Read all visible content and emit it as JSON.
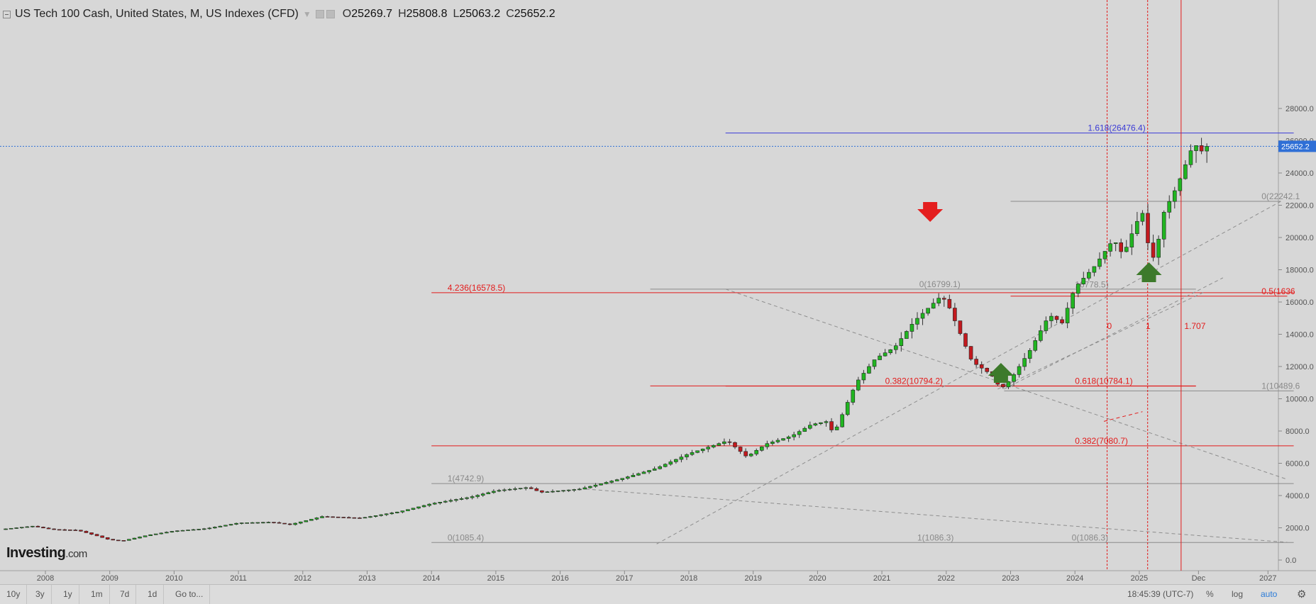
{
  "header": {
    "symbol": "US Tech 100 Cash, United States, M, US Indexes (CFD)",
    "open_label": "O",
    "open": "25269.7",
    "high_label": "H",
    "high": "25808.8",
    "low_label": "L",
    "low": "25063.2",
    "close_label": "C",
    "close": "25652.2"
  },
  "brand": {
    "name": "Investing",
    "suffix": ".com"
  },
  "colors": {
    "up": "#21b521",
    "down": "#c2191e",
    "fib_red": "#e31b1b",
    "fib_blue": "#3b3bd6",
    "fib_gray": "#888888",
    "arrow_red": "#e41e1e",
    "arrow_green": "#3d7a2b",
    "price_tag": "#2f6fd6"
  },
  "y_axis": {
    "ticks": [
      0,
      2000,
      4000,
      6000,
      8000,
      10000,
      12000,
      14000,
      16000,
      18000,
      20000,
      22000,
      24000,
      26000,
      28000
    ],
    "labels": [
      "0.0",
      "2000.0",
      "4000.0",
      "6000.0",
      "8000.0",
      "10000.0",
      "12000.0",
      "14000.0",
      "16000.0",
      "18000.0",
      "20000.0",
      "22000.0",
      "24000.0",
      "26000.0",
      "28000.0"
    ],
    "current_price": 25652.2,
    "current_label": "25652.2"
  },
  "x_axis": {
    "labels": [
      "2008",
      "2009",
      "2010",
      "2011",
      "2012",
      "2013",
      "2014",
      "2015",
      "2016",
      "2017",
      "2018",
      "2019",
      "2020",
      "2021",
      "2022",
      "2023",
      "2024",
      "2025",
      "Dec",
      "2027"
    ],
    "values": [
      2008,
      2009,
      2010,
      2011,
      2012,
      2013,
      2014,
      2015,
      2016,
      2017,
      2018,
      2019,
      2020,
      2021,
      2022,
      2023,
      2024,
      2025,
      2025.92,
      2027
    ]
  },
  "series_anchors": [
    [
      2007.3,
      1900
    ],
    [
      2007.8,
      2100
    ],
    [
      2008.1,
      1900
    ],
    [
      2008.5,
      1850
    ],
    [
      2008.8,
      1500
    ],
    [
      2009.0,
      1250
    ],
    [
      2009.2,
      1200
    ],
    [
      2009.6,
      1550
    ],
    [
      2010.0,
      1800
    ],
    [
      2010.5,
      1950
    ],
    [
      2011.0,
      2300
    ],
    [
      2011.5,
      2350
    ],
    [
      2011.8,
      2200
    ],
    [
      2012.3,
      2700
    ],
    [
      2012.9,
      2600
    ],
    [
      2013.5,
      3000
    ],
    [
      2014.0,
      3500
    ],
    [
      2014.6,
      3900
    ],
    [
      2015.0,
      4300
    ],
    [
      2015.5,
      4500
    ],
    [
      2015.7,
      4200
    ],
    [
      2016.0,
      4300
    ],
    [
      2016.3,
      4400
    ],
    [
      2016.7,
      4800
    ],
    [
      2017.0,
      5100
    ],
    [
      2017.5,
      5700
    ],
    [
      2018.0,
      6600
    ],
    [
      2018.6,
      7400
    ],
    [
      2018.9,
      6400
    ],
    [
      2019.2,
      7200
    ],
    [
      2019.6,
      7700
    ],
    [
      2019.9,
      8400
    ],
    [
      2020.15,
      8600
    ],
    [
      2020.25,
      7800
    ],
    [
      2020.6,
      11000
    ],
    [
      2020.9,
      12500
    ],
    [
      2021.2,
      13200
    ],
    [
      2021.5,
      14800
    ],
    [
      2021.9,
      16300
    ],
    [
      2022.0,
      16100
    ],
    [
      2022.4,
      12300
    ],
    [
      2022.7,
      11500
    ],
    [
      2022.85,
      10600
    ],
    [
      2023.0,
      11200
    ],
    [
      2023.3,
      13000
    ],
    [
      2023.6,
      15200
    ],
    [
      2023.8,
      14700
    ],
    [
      2024.0,
      16900
    ],
    [
      2024.3,
      18200
    ],
    [
      2024.6,
      19900
    ],
    [
      2024.75,
      18900
    ],
    [
      2024.95,
      20900
    ],
    [
      2025.05,
      21500
    ],
    [
      2025.15,
      19300
    ],
    [
      2025.25,
      18500
    ],
    [
      2025.35,
      21300
    ],
    [
      2025.6,
      23300
    ],
    [
      2025.85,
      25900
    ],
    [
      2025.95,
      25300
    ],
    [
      2026.05,
      25652
    ]
  ],
  "fib_labels": [
    {
      "text": "1.618(26476.4)",
      "price": 26476.4,
      "x": 2024.2,
      "color": "blue"
    },
    {
      "text": "0(22242.1",
      "price": 22242,
      "x": 2026.9,
      "color": "gray"
    },
    {
      "text": "4.236(16578.5)",
      "price": 16578.5,
      "x": 2014.25,
      "color": "red"
    },
    {
      "text": "0(16799.1)",
      "price": 16799,
      "x": 2021.58,
      "color": "gray"
    },
    {
      "text": "16778.5)",
      "price": 16778.5,
      "x": 2024.0,
      "color": "gray"
    },
    {
      "text": "0.5(1636",
      "price": 16360,
      "x": 2026.9,
      "color": "red"
    },
    {
      "text": "0.382(10794.2)",
      "price": 10794.2,
      "x": 2021.05,
      "color": "red"
    },
    {
      "text": "0.618(10784.1)",
      "price": 10784.1,
      "x": 2024.0,
      "color": "red"
    },
    {
      "text": "1(10489.6",
      "price": 10489.6,
      "x": 2026.9,
      "color": "gray"
    },
    {
      "text": "0.382(7080.7)",
      "price": 7080.7,
      "x": 2024.0,
      "color": "red"
    },
    {
      "text": "1(4742.9)",
      "price": 4742.9,
      "x": 2014.25,
      "color": "gray"
    },
    {
      "text": "0(1085.4)",
      "price": 1085.4,
      "x": 2014.25,
      "color": "gray"
    },
    {
      "text": "0(1086.3)",
      "price": 1086.3,
      "x": 2023.95,
      "color": "gray"
    },
    {
      "text": "1(1086.3)",
      "price": 1086.3,
      "x": 2021.55,
      "color": "gray"
    },
    {
      "text": "0",
      "price": 14200,
      "x": 2024.5,
      "color": "red"
    },
    {
      "text": "1",
      "price": 14200,
      "x": 2025.1,
      "color": "red"
    },
    {
      "text": "1.707",
      "price": 14200,
      "x": 2025.7,
      "color": "red"
    }
  ],
  "ranges": [
    "10y",
    "3y",
    "1y",
    "1m",
    "7d",
    "1d",
    "Go to..."
  ],
  "bottom_right": {
    "time": "18:45:39 (UTC-7)",
    "percent": "%",
    "log": "log",
    "auto": "auto"
  }
}
